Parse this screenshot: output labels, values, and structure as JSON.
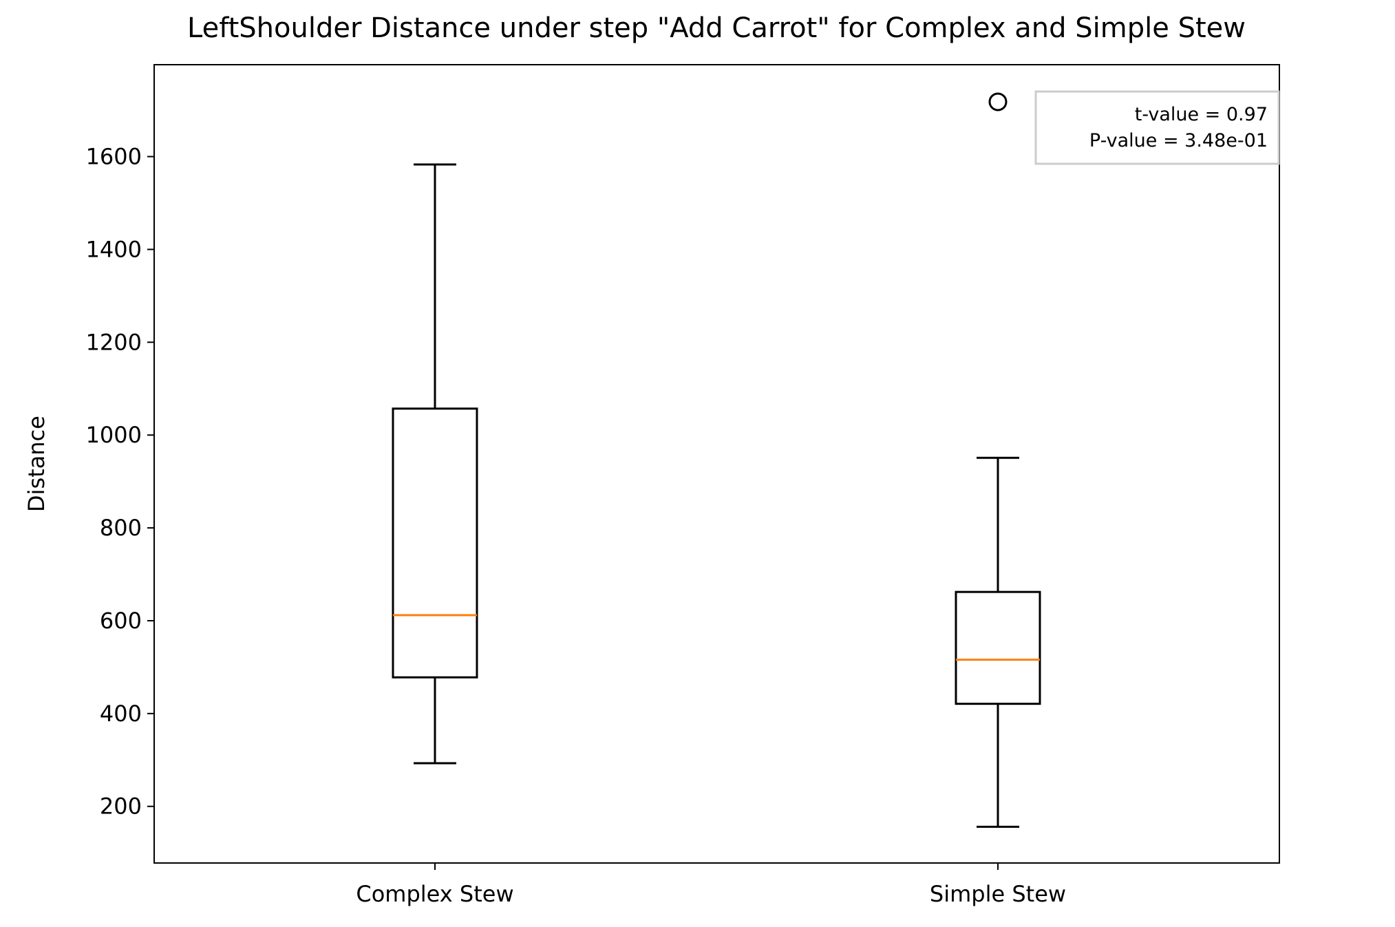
{
  "chart_data": {
    "type": "box",
    "title": "LeftShoulder Distance under step \"Add Carrot\" for Complex and Simple Stew",
    "xlabel": "",
    "ylabel": "Distance",
    "ylim": [
      78,
      1798
    ],
    "yticks": [
      200,
      400,
      600,
      800,
      1000,
      1200,
      1400,
      1600
    ],
    "categories": [
      "Complex Stew",
      "Simple Stew"
    ],
    "boxes": [
      {
        "category": "Complex Stew",
        "whisker_low": 293,
        "q1": 478,
        "median": 612,
        "q3": 1057,
        "whisker_high": 1583,
        "outliers": []
      },
      {
        "category": "Simple Stew",
        "whisker_low": 156,
        "q1": 421,
        "median": 516,
        "q3": 662,
        "whisker_high": 951,
        "outliers": [
          1718
        ]
      }
    ],
    "annotation": {
      "lines": [
        "t-value = 0.97",
        "P-value = 3.48e-01"
      ],
      "position": "top-right"
    },
    "colors": {
      "median": "#ff7f0e",
      "box": "#000000",
      "annotation_border": "#cccccc"
    }
  }
}
